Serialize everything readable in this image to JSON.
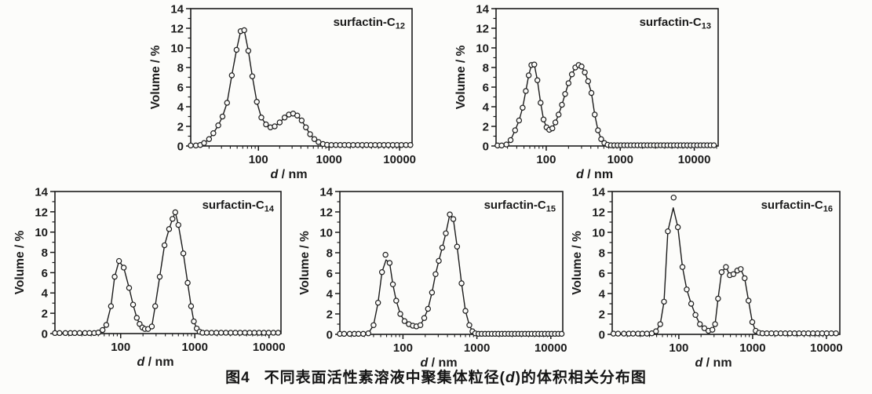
{
  "page": {
    "background": "#fcfcfa",
    "ink": "#1b1b1b"
  },
  "caption": {
    "label": "图4",
    "pre": "不同表面活性素溶液中聚集体粒径(",
    "var": "d",
    "post": ")的体积相关分布图"
  },
  "chart_data": [
    {
      "id": "c12",
      "type": "line",
      "label_base": "surfactin-C",
      "label_sub": "12",
      "ylabel": "Volume / %",
      "xlabel_var": "d",
      "xlabel_rest": " / nm",
      "xscale": "log",
      "xlim": [
        11,
        15000
      ],
      "ylim": [
        0,
        14
      ],
      "yticks": [
        0,
        2,
        4,
        6,
        8,
        10,
        12,
        14
      ],
      "xticks": [
        100,
        1000,
        10000
      ],
      "grid": false,
      "legend": "none",
      "curve": [
        [
          11,
          0.05
        ],
        [
          13,
          0.05
        ],
        [
          15,
          0.1
        ],
        [
          17,
          0.3
        ],
        [
          20,
          0.7
        ],
        [
          23,
          1.3
        ],
        [
          27,
          2.1
        ],
        [
          31,
          3.0
        ],
        [
          36,
          4.4
        ],
        [
          42,
          7.2
        ],
        [
          49,
          9.8
        ],
        [
          56,
          11.7
        ],
        [
          63,
          11.8
        ],
        [
          72,
          9.7
        ],
        [
          82,
          7.1
        ],
        [
          95,
          4.5
        ],
        [
          110,
          2.9
        ],
        [
          128,
          2.2
        ],
        [
          148,
          1.9
        ],
        [
          170,
          2.0
        ],
        [
          200,
          2.4
        ],
        [
          235,
          2.9
        ],
        [
          270,
          3.2
        ],
        [
          310,
          3.3
        ],
        [
          355,
          3.1
        ],
        [
          410,
          2.6
        ],
        [
          470,
          1.9
        ],
        [
          540,
          1.2
        ],
        [
          620,
          0.7
        ],
        [
          710,
          0.4
        ],
        [
          820,
          0.2
        ],
        [
          940,
          0.12
        ],
        [
          1080,
          0.1
        ],
        [
          1250,
          0.1
        ],
        [
          1440,
          0.1
        ],
        [
          1660,
          0.1
        ],
        [
          1900,
          0.1
        ],
        [
          2200,
          0.1
        ],
        [
          2550,
          0.1
        ],
        [
          2950,
          0.1
        ],
        [
          3400,
          0.1
        ],
        [
          3900,
          0.1
        ],
        [
          4500,
          0.1
        ],
        [
          5200,
          0.1
        ],
        [
          6000,
          0.1
        ],
        [
          6900,
          0.1
        ],
        [
          8000,
          0.1
        ],
        [
          9200,
          0.1
        ],
        [
          10600,
          0.1
        ],
        [
          12300,
          0.1
        ],
        [
          14200,
          0.1
        ]
      ],
      "extra_markers": [],
      "skip_marker_idx": []
    },
    {
      "id": "c13",
      "type": "line",
      "label_base": "surfactin-C",
      "label_sub": "13",
      "ylabel": "Volume / %",
      "xlabel_var": "d",
      "xlabel_rest": " / nm",
      "xscale": "log",
      "xlim": [
        21,
        21000
      ],
      "ylim": [
        0,
        14
      ],
      "yticks": [
        0,
        2,
        4,
        6,
        8,
        10,
        12,
        14
      ],
      "xticks": [
        100,
        1000,
        10000
      ],
      "grid": false,
      "legend": "none",
      "curve": [
        [
          22,
          0.05
        ],
        [
          25,
          0.05
        ],
        [
          29,
          0.15
        ],
        [
          33,
          0.6
        ],
        [
          38,
          1.6
        ],
        [
          43,
          2.6
        ],
        [
          48,
          3.9
        ],
        [
          53,
          5.6
        ],
        [
          58,
          7.2
        ],
        [
          63,
          8.25
        ],
        [
          69,
          8.3
        ],
        [
          76,
          6.7
        ],
        [
          84,
          4.4
        ],
        [
          92,
          2.7
        ],
        [
          101,
          1.9
        ],
        [
          110,
          1.65
        ],
        [
          121,
          1.8
        ],
        [
          133,
          2.4
        ],
        [
          147,
          3.2
        ],
        [
          163,
          4.2
        ],
        [
          180,
          5.3
        ],
        [
          200,
          6.4
        ],
        [
          222,
          7.3
        ],
        [
          247,
          8.0
        ],
        [
          274,
          8.25
        ],
        [
          300,
          8.1
        ],
        [
          332,
          7.5
        ],
        [
          368,
          6.6
        ],
        [
          408,
          5.4
        ],
        [
          452,
          3.2
        ],
        [
          500,
          1.6
        ],
        [
          552,
          0.7
        ],
        [
          610,
          0.3
        ],
        [
          675,
          0.12
        ],
        [
          750,
          0.07
        ],
        [
          830,
          0.07
        ],
        [
          920,
          0.07
        ],
        [
          1020,
          0.07
        ],
        [
          1130,
          0.07
        ],
        [
          1250,
          0.07
        ],
        [
          1390,
          0.07
        ],
        [
          1540,
          0.07
        ],
        [
          1710,
          0.07
        ],
        [
          1900,
          0.07
        ],
        [
          2100,
          0.07
        ],
        [
          2330,
          0.07
        ],
        [
          2580,
          0.07
        ],
        [
          2860,
          0.07
        ],
        [
          3170,
          0.07
        ],
        [
          3520,
          0.07
        ],
        [
          3900,
          0.07
        ],
        [
          4330,
          0.07
        ],
        [
          4800,
          0.07
        ],
        [
          5320,
          0.07
        ],
        [
          5900,
          0.07
        ],
        [
          6540,
          0.07
        ],
        [
          7250,
          0.07
        ],
        [
          8040,
          0.07
        ],
        [
          8920,
          0.07
        ],
        [
          9890,
          0.07
        ],
        [
          10970,
          0.07
        ],
        [
          12160,
          0.07
        ],
        [
          13480,
          0.07
        ],
        [
          14950,
          0.07
        ],
        [
          16580,
          0.07
        ],
        [
          18380,
          0.07
        ]
      ],
      "extra_markers": [],
      "skip_marker_idx": []
    },
    {
      "id": "c14",
      "type": "line",
      "label_base": "surfactin-C",
      "label_sub": "14",
      "ylabel": "Volume / %",
      "xlabel_var": "d",
      "xlabel_rest": " / nm",
      "xscale": "log",
      "xlim": [
        13,
        14500
      ],
      "ylim": [
        0,
        14
      ],
      "yticks": [
        0,
        2,
        4,
        6,
        8,
        10,
        12,
        14
      ],
      "xticks": [
        100,
        1000,
        10000
      ],
      "grid": false,
      "legend": "none",
      "curve": [
        [
          13,
          0.05
        ],
        [
          15,
          0.05
        ],
        [
          18,
          0.05
        ],
        [
          21,
          0.05
        ],
        [
          24,
          0.05
        ],
        [
          28,
          0.05
        ],
        [
          33,
          0.05
        ],
        [
          38,
          0.05
        ],
        [
          44,
          0.05
        ],
        [
          50,
          0.1
        ],
        [
          57,
          0.35
        ],
        [
          64,
          0.85
        ],
        [
          74,
          2.7
        ],
        [
          83,
          5.6
        ],
        [
          95,
          7.15
        ],
        [
          110,
          6.5
        ],
        [
          130,
          4.5
        ],
        [
          147,
          2.85
        ],
        [
          165,
          1.55
        ],
        [
          180,
          0.95
        ],
        [
          196,
          0.6
        ],
        [
          212,
          0.45
        ],
        [
          234,
          0.45
        ],
        [
          263,
          0.7
        ],
        [
          292,
          2.7
        ],
        [
          336,
          5.6
        ],
        [
          390,
          8.7
        ],
        [
          450,
          10.3
        ],
        [
          500,
          11.3
        ],
        [
          545,
          11.95
        ],
        [
          600,
          10.7
        ],
        [
          700,
          7.9
        ],
        [
          800,
          5.0
        ],
        [
          890,
          2.7
        ],
        [
          970,
          1.2
        ],
        [
          1060,
          0.5
        ],
        [
          1160,
          0.18
        ],
        [
          1270,
          0.08
        ],
        [
          1450,
          0.08
        ],
        [
          1680,
          0.08
        ],
        [
          1950,
          0.08
        ],
        [
          2260,
          0.08
        ],
        [
          2620,
          0.08
        ],
        [
          3040,
          0.08
        ],
        [
          3520,
          0.08
        ],
        [
          4080,
          0.08
        ],
        [
          4730,
          0.08
        ],
        [
          5480,
          0.08
        ],
        [
          6350,
          0.08
        ],
        [
          7360,
          0.08
        ],
        [
          8530,
          0.08
        ],
        [
          9890,
          0.08
        ],
        [
          11460,
          0.08
        ],
        [
          13280,
          0.08
        ]
      ],
      "extra_markers": [],
      "skip_marker_idx": []
    },
    {
      "id": "c15",
      "type": "line",
      "label_base": "surfactin-C",
      "label_sub": "15",
      "ylabel": "Volume / %",
      "xlabel_var": "d",
      "xlabel_rest": " / nm",
      "xscale": "log",
      "xlim": [
        14,
        14500
      ],
      "ylim": [
        0,
        14
      ],
      "yticks": [
        0,
        2,
        4,
        6,
        8,
        10,
        12,
        14
      ],
      "xticks": [
        100,
        1000,
        10000
      ],
      "grid": false,
      "legend": "none",
      "curve": [
        [
          14,
          0.05
        ],
        [
          16,
          0.05
        ],
        [
          19,
          0.05
        ],
        [
          22,
          0.05
        ],
        [
          25,
          0.05
        ],
        [
          29,
          0.05
        ],
        [
          34,
          0.1
        ],
        [
          40,
          0.9
        ],
        [
          46,
          3.1
        ],
        [
          52,
          6.1
        ],
        [
          59,
          7.3
        ],
        [
          66,
          7.0
        ],
        [
          73,
          4.9
        ],
        [
          81,
          3.3
        ],
        [
          92,
          2.0
        ],
        [
          105,
          1.3
        ],
        [
          120,
          1.0
        ],
        [
          136,
          0.85
        ],
        [
          152,
          0.78
        ],
        [
          172,
          0.9
        ],
        [
          194,
          1.6
        ],
        [
          218,
          2.5
        ],
        [
          247,
          4.1
        ],
        [
          276,
          5.9
        ],
        [
          305,
          7.2
        ],
        [
          340,
          8.5
        ],
        [
          380,
          9.9
        ],
        [
          430,
          11.75
        ],
        [
          480,
          11.3
        ],
        [
          540,
          8.6
        ],
        [
          620,
          5.0
        ],
        [
          700,
          2.3
        ],
        [
          790,
          0.9
        ],
        [
          870,
          0.3
        ],
        [
          950,
          0.1
        ],
        [
          1050,
          0.05
        ],
        [
          1160,
          0.05
        ],
        [
          1290,
          0.05
        ],
        [
          1430,
          0.05
        ],
        [
          1590,
          0.05
        ],
        [
          1760,
          0.05
        ],
        [
          1950,
          0.05
        ],
        [
          2170,
          0.05
        ],
        [
          2400,
          0.05
        ],
        [
          2670,
          0.05
        ],
        [
          2960,
          0.05
        ],
        [
          3280,
          0.05
        ],
        [
          3640,
          0.05
        ],
        [
          4040,
          0.05
        ],
        [
          4480,
          0.05
        ],
        [
          4970,
          0.05
        ],
        [
          5510,
          0.05
        ],
        [
          6110,
          0.05
        ],
        [
          6780,
          0.05
        ],
        [
          7520,
          0.05
        ],
        [
          8340,
          0.05
        ],
        [
          9250,
          0.05
        ],
        [
          10260,
          0.05
        ],
        [
          11380,
          0.05
        ],
        [
          12620,
          0.05
        ],
        [
          14000,
          0.05
        ]
      ],
      "extra_markers": [
        [
          58,
          7.8
        ]
      ],
      "skip_marker_idx": [
        10
      ]
    },
    {
      "id": "c16",
      "type": "line",
      "label_base": "surfactin-C",
      "label_sub": "16",
      "ylabel": "Volume / %",
      "xlabel_var": "d",
      "xlabel_rest": " / nm",
      "xscale": "log",
      "xlim": [
        12.5,
        15200
      ],
      "ylim": [
        0,
        14
      ],
      "yticks": [
        0,
        2,
        4,
        6,
        8,
        10,
        12,
        14
      ],
      "xticks": [
        100,
        1000,
        10000
      ],
      "grid": false,
      "legend": "none",
      "curve": [
        [
          13,
          0.07
        ],
        [
          15,
          0.07
        ],
        [
          18,
          0.07
        ],
        [
          21,
          0.07
        ],
        [
          24,
          0.07
        ],
        [
          28,
          0.07
        ],
        [
          32,
          0.07
        ],
        [
          37,
          0.07
        ],
        [
          43,
          0.1
        ],
        [
          49,
          0.3
        ],
        [
          56,
          1.0
        ],
        [
          63,
          3.2
        ],
        [
          71,
          10.1
        ],
        [
          84,
          12.4
        ],
        [
          97,
          10.5
        ],
        [
          112,
          6.6
        ],
        [
          128,
          4.4
        ],
        [
          147,
          3.0
        ],
        [
          168,
          1.9
        ],
        [
          193,
          1.0
        ],
        [
          222,
          0.6
        ],
        [
          252,
          0.35
        ],
        [
          285,
          0.45
        ],
        [
          310,
          1.0
        ],
        [
          340,
          3.5
        ],
        [
          380,
          6.1
        ],
        [
          435,
          6.6
        ],
        [
          490,
          5.8
        ],
        [
          550,
          5.9
        ],
        [
          620,
          6.25
        ],
        [
          690,
          6.4
        ],
        [
          780,
          5.5
        ],
        [
          880,
          3.3
        ],
        [
          990,
          1.2
        ],
        [
          1100,
          0.35
        ],
        [
          1220,
          0.15
        ],
        [
          1360,
          0.1
        ],
        [
          1560,
          0.1
        ],
        [
          1800,
          0.1
        ],
        [
          2080,
          0.1
        ],
        [
          2400,
          0.1
        ],
        [
          2770,
          0.1
        ],
        [
          3200,
          0.1
        ],
        [
          3700,
          0.1
        ],
        [
          4270,
          0.1
        ],
        [
          4930,
          0.1
        ],
        [
          5690,
          0.1
        ],
        [
          6570,
          0.1
        ],
        [
          7590,
          0.1
        ],
        [
          8760,
          0.1
        ],
        [
          10110,
          0.1
        ],
        [
          11670,
          0.1
        ],
        [
          13470,
          0.1
        ]
      ],
      "extra_markers": [
        [
          85,
          13.4
        ]
      ],
      "skip_marker_idx": [
        13
      ]
    }
  ]
}
